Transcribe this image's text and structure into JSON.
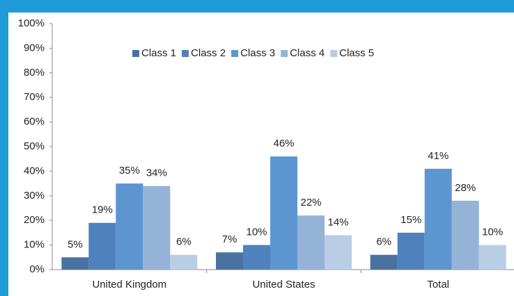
{
  "chart_data": {
    "type": "bar",
    "categories": [
      "United Kingdom",
      "United States",
      "Total"
    ],
    "series": [
      {
        "name": "Class 1",
        "color": "#4a72a0",
        "values": [
          5,
          7,
          6
        ],
        "value_labels": [
          "5%",
          "7%",
          "6%"
        ]
      },
      {
        "name": "Class 2",
        "color": "#4f81bd",
        "values": [
          19,
          10,
          15
        ],
        "value_labels": [
          "19%",
          "10%",
          "15%"
        ]
      },
      {
        "name": "Class 3",
        "color": "#5d95d1",
        "values": [
          35,
          46,
          41
        ],
        "value_labels": [
          "35%",
          "46%",
          "41%"
        ]
      },
      {
        "name": "Class 4",
        "color": "#95b3d7",
        "values": [
          34,
          22,
          28
        ],
        "value_labels": [
          "34%",
          "22%",
          "28%"
        ]
      },
      {
        "name": "Class 5",
        "color": "#b9cde5",
        "values": [
          6,
          14,
          10
        ],
        "value_labels": [
          "6%",
          "14%",
          "10%"
        ]
      }
    ],
    "ylim": [
      0,
      100
    ],
    "yticks": [
      {
        "value": 0,
        "label": "0%"
      },
      {
        "value": 10,
        "label": "10%"
      },
      {
        "value": 20,
        "label": "20%"
      },
      {
        "value": 30,
        "label": "30%"
      },
      {
        "value": 40,
        "label": "40%"
      },
      {
        "value": 50,
        "label": "50%"
      },
      {
        "value": 60,
        "label": "60%"
      },
      {
        "value": 70,
        "label": "70%"
      },
      {
        "value": 80,
        "label": "80%"
      },
      {
        "value": 90,
        "label": "90%"
      },
      {
        "value": 100,
        "label": "100%"
      }
    ],
    "legend": "top"
  }
}
